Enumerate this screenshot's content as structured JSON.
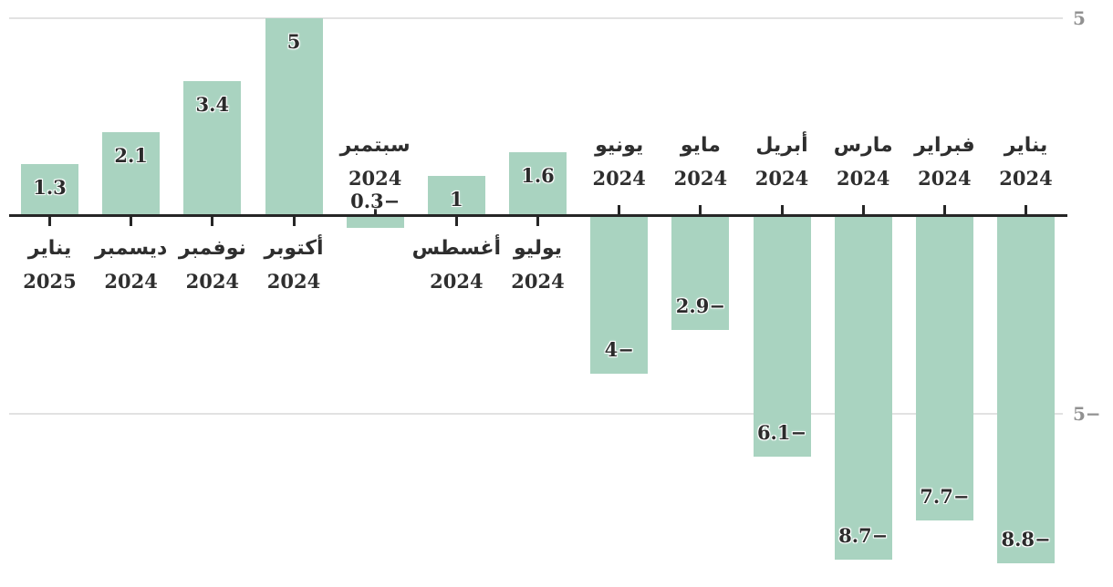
{
  "chart_data": {
    "type": "bar",
    "title": "",
    "xlabel": "",
    "ylabel": "",
    "direction": "rtl",
    "legend": "none",
    "grid": true,
    "bars": [
      {
        "month": "يناير",
        "year": "2025",
        "value": 1.3,
        "value_label": "1.3"
      },
      {
        "month": "ديسمبر",
        "year": "2024",
        "value": 2.1,
        "value_label": "2.1"
      },
      {
        "month": "نوفمبر",
        "year": "2024",
        "value": 3.4,
        "value_label": "3.4"
      },
      {
        "month": "أكتوبر",
        "year": "2024",
        "value": 5,
        "value_label": "5"
      },
      {
        "month": "سبتمبر",
        "year": "2024",
        "value": -0.3,
        "value_label": "0.3−"
      },
      {
        "month": "أغسطس",
        "year": "2024",
        "value": 1,
        "value_label": "1"
      },
      {
        "month": "يوليو",
        "year": "2024",
        "value": 1.6,
        "value_label": "1.6"
      },
      {
        "month": "يونيو",
        "year": "2024",
        "value": -4,
        "value_label": "4−"
      },
      {
        "month": "مايو",
        "year": "2024",
        "value": -2.9,
        "value_label": "2.9−"
      },
      {
        "month": "أبريل",
        "year": "2024",
        "value": -6.1,
        "value_label": "6.1−"
      },
      {
        "month": "مارس",
        "year": "2024",
        "value": -8.7,
        "value_label": "8.7−"
      },
      {
        "month": "فبراير",
        "year": "2024",
        "value": -7.7,
        "value_label": "7.7−"
      },
      {
        "month": "يناير",
        "year": "2024",
        "value": -8.8,
        "value_label": "8.8−"
      }
    ],
    "y_axis": {
      "ylim": [
        -10,
        5
      ],
      "ticks": [
        {
          "value": 5,
          "label": "5"
        },
        {
          "value": -5,
          "label": "5−"
        }
      ]
    },
    "colors": {
      "bar": "#a9d3c0",
      "axis": "#262626",
      "gridline": "#e2e2e2",
      "tick_label": "#919191",
      "text": "#2e2e2e"
    }
  }
}
